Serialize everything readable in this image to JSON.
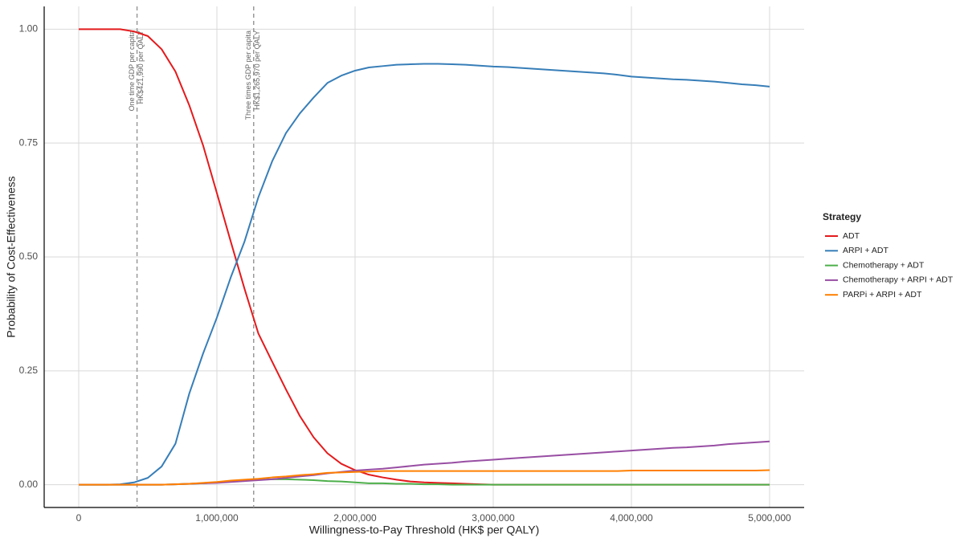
{
  "chart_data": {
    "type": "line",
    "xlabel": "Willingness-to-Pay Threshold (HK$ per QALY)",
    "ylabel": "Probability of Cost-Effectiveness",
    "legend_title": "Strategy",
    "legend": "right",
    "grid": true,
    "xlim": [
      -250000,
      5250000
    ],
    "ylim": [
      -0.05,
      1.05
    ],
    "xticks": [
      0,
      {
        "value": 1000000,
        "label": "1,000,000"
      },
      {
        "value": 2000000,
        "label": "2,000,000"
      },
      {
        "value": 3000000,
        "label": "3,000,000"
      },
      {
        "value": 4000000,
        "label": "4,000,000"
      },
      {
        "value": 5000000,
        "label": "5,000,000"
      }
    ],
    "yticks": [
      {
        "value": 0,
        "label": "0.00"
      },
      {
        "value": 0.25,
        "label": "0.25"
      },
      {
        "value": 0.5,
        "label": "0.50"
      },
      {
        "value": 0.75,
        "label": "0.75"
      },
      {
        "value": 1,
        "label": "1.00"
      }
    ],
    "annotations": [
      {
        "x": 421990,
        "lines": [
          "One time GDP per capita",
          "HK$421,990 per QALY"
        ]
      },
      {
        "x": 1265970,
        "lines": [
          "Three times GDP per capita",
          "HK$1,265,970 per QALY"
        ]
      }
    ],
    "x": [
      0,
      100000,
      200000,
      300000,
      400000,
      500000,
      600000,
      700000,
      800000,
      900000,
      1000000,
      1100000,
      1200000,
      1300000,
      1400000,
      1500000,
      1600000,
      1700000,
      1800000,
      1900000,
      2000000,
      2100000,
      2200000,
      2300000,
      2400000,
      2500000,
      2600000,
      2700000,
      2800000,
      2900000,
      3000000,
      3100000,
      3200000,
      3300000,
      3400000,
      3500000,
      3600000,
      3700000,
      3800000,
      3900000,
      4000000,
      4100000,
      4200000,
      4300000,
      4400000,
      4500000,
      4600000,
      4700000,
      4800000,
      4900000,
      5000000
    ],
    "series": [
      {
        "name": "ADT",
        "color": "#e41a1c",
        "values": [
          1,
          1,
          1,
          1,
          0.995,
          0.985,
          0.956,
          0.907,
          0.833,
          0.745,
          0.64,
          0.534,
          0.43,
          0.332,
          0.27,
          0.209,
          0.151,
          0.104,
          0.069,
          0.046,
          0.032,
          0.022,
          0.016,
          0.011,
          0.007,
          0.005,
          0.004,
          0.003,
          0.002,
          0.001,
          0,
          0,
          0,
          0,
          0,
          0,
          0,
          0,
          0,
          0,
          0,
          0,
          0,
          0,
          0,
          0,
          0,
          0,
          0,
          0,
          0
        ]
      },
      {
        "name": "ARPI + ADT",
        "color": "#377eb8",
        "values": [
          0,
          0,
          0,
          0.001,
          0.005,
          0.015,
          0.04,
          0.09,
          0.2,
          0.288,
          0.367,
          0.455,
          0.534,
          0.631,
          0.71,
          0.772,
          0.815,
          0.85,
          0.882,
          0.898,
          0.909,
          0.916,
          0.919,
          0.922,
          0.923,
          0.924,
          0.924,
          0.923,
          0.922,
          0.92,
          0.918,
          0.917,
          0.915,
          0.913,
          0.911,
          0.909,
          0.907,
          0.905,
          0.903,
          0.9,
          0.896,
          0.894,
          0.892,
          0.89,
          0.889,
          0.887,
          0.885,
          0.882,
          0.879,
          0.877,
          0.874
        ]
      },
      {
        "name": "Chemotherapy + ADT",
        "color": "#4daf4a",
        "values": [
          0,
          0,
          0,
          0,
          0,
          0,
          0,
          0.001,
          0.002,
          0.003,
          0.005,
          0.007,
          0.009,
          0.011,
          0.012,
          0.012,
          0.011,
          0.01,
          0.008,
          0.007,
          0.005,
          0.003,
          0.003,
          0.002,
          0.002,
          0.001,
          0.001,
          0,
          0,
          0,
          0,
          0,
          0,
          0,
          0,
          0,
          0,
          0,
          0,
          0,
          0,
          0,
          0,
          0,
          0,
          0,
          0,
          0,
          0,
          0,
          0
        ]
      },
      {
        "name": "Chemotherapy + ARPI + ADT",
        "color": "#984ea3",
        "values": [
          0,
          0,
          0,
          0,
          0,
          0,
          0,
          0.001,
          0.002,
          0.003,
          0.004,
          0.006,
          0.008,
          0.01,
          0.012,
          0.015,
          0.018,
          0.021,
          0.025,
          0.028,
          0.031,
          0.033,
          0.035,
          0.038,
          0.041,
          0.044,
          0.046,
          0.048,
          0.051,
          0.053,
          0.055,
          0.057,
          0.059,
          0.061,
          0.063,
          0.065,
          0.067,
          0.069,
          0.071,
          0.073,
          0.075,
          0.077,
          0.079,
          0.081,
          0.082,
          0.084,
          0.086,
          0.089,
          0.091,
          0.093,
          0.095
        ]
      },
      {
        "name": "PARPi + ARPI + ADT",
        "color": "#ff7f00",
        "values": [
          0,
          0,
          0,
          0,
          0,
          0,
          0,
          0.001,
          0.002,
          0.004,
          0.006,
          0.009,
          0.011,
          0.013,
          0.016,
          0.018,
          0.021,
          0.023,
          0.026,
          0.027,
          0.028,
          0.029,
          0.03,
          0.03,
          0.03,
          0.03,
          0.03,
          0.03,
          0.03,
          0.03,
          0.03,
          0.03,
          0.03,
          0.03,
          0.03,
          0.03,
          0.03,
          0.03,
          0.03,
          0.03,
          0.031,
          0.031,
          0.031,
          0.031,
          0.031,
          0.031,
          0.031,
          0.031,
          0.031,
          0.031,
          0.032
        ]
      }
    ]
  }
}
